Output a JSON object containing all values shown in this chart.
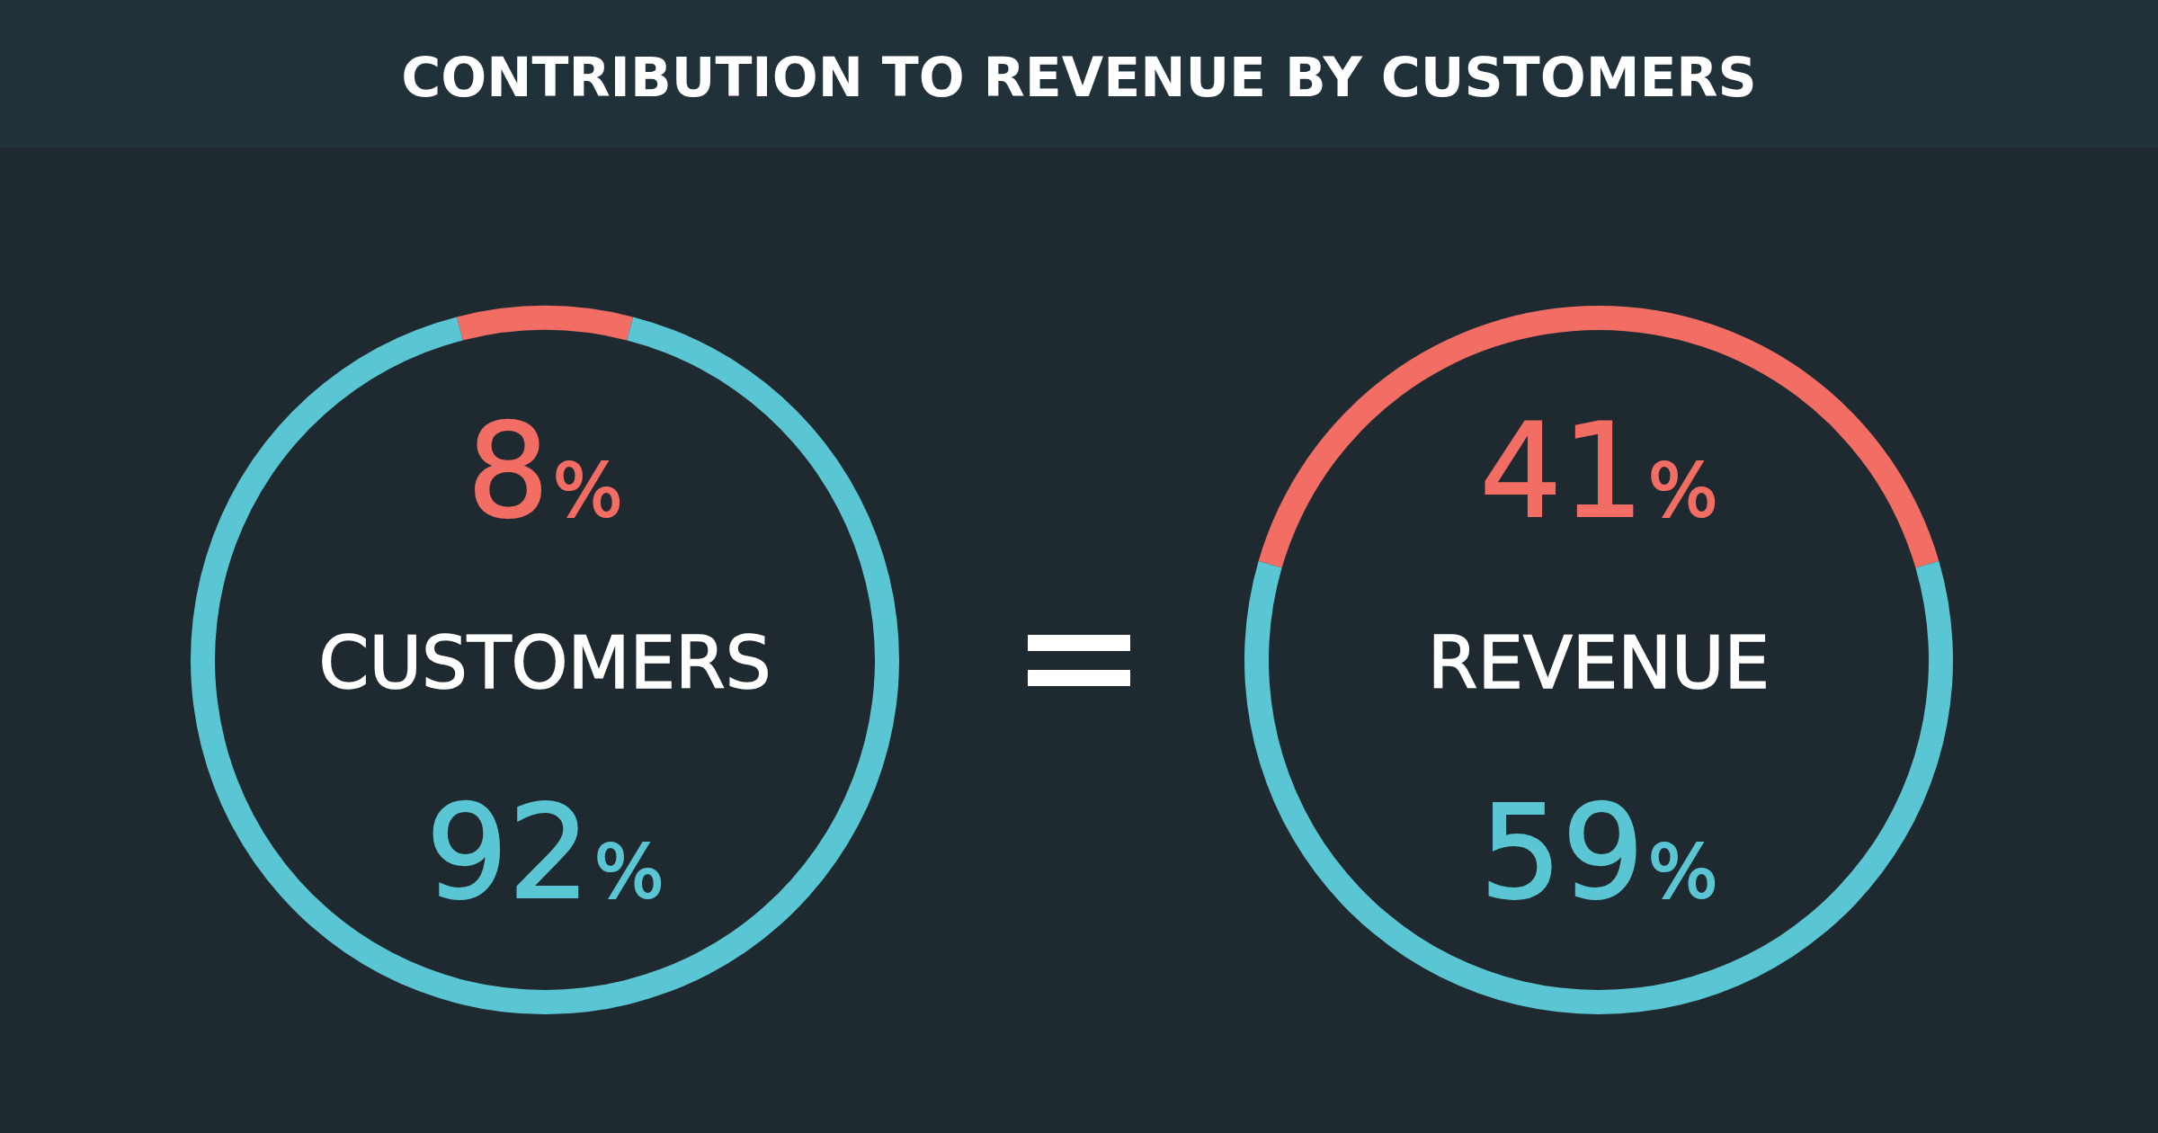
{
  "chart_data": [
    {
      "type": "other",
      "title": "CONTRIBUTION TO REVENUE BY CUSTOMERS"
    },
    {
      "type": "donut",
      "title": "CUSTOMERS",
      "categories": [
        null,
        null
      ],
      "values": [
        8,
        92
      ],
      "colors": [
        "#f26d63",
        "#5bc6d3"
      ],
      "value_labels": [
        "8%",
        "92%"
      ]
    },
    {
      "type": "donut",
      "title": "REVENUE",
      "categories": [
        null,
        null
      ],
      "values": [
        41,
        59
      ],
      "colors": [
        "#f26d63",
        "#5bc6d3"
      ],
      "value_labels": [
        "41%",
        "59%"
      ]
    }
  ]
}
